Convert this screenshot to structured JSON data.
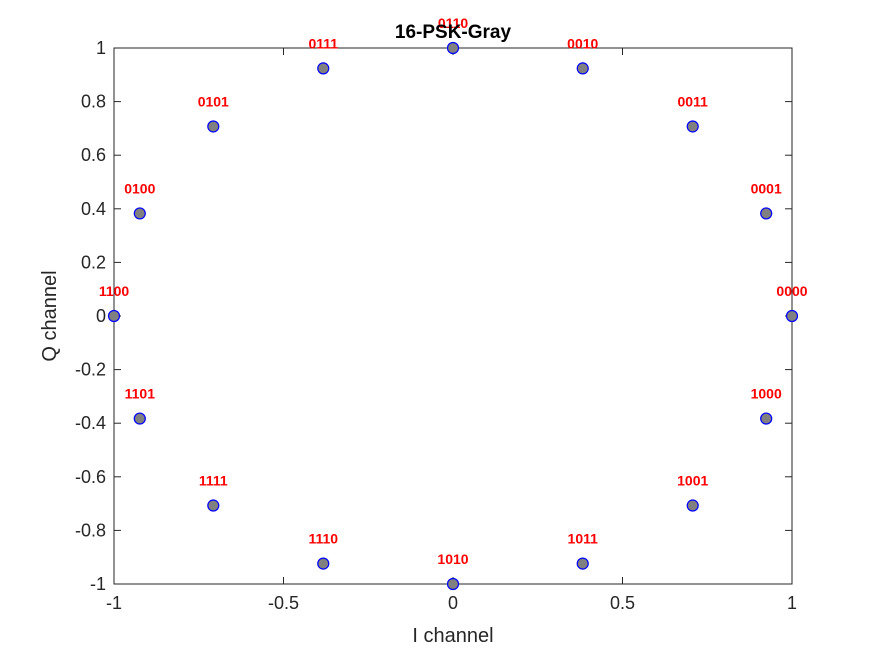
{
  "chart_data": {
    "type": "scatter",
    "title": "16-PSK-Gray",
    "xlabel": "I channel",
    "ylabel": "Q channel",
    "xlim": [
      -1,
      1
    ],
    "ylim": [
      -1,
      1
    ],
    "xticks": [
      -1,
      -0.5,
      0,
      0.5,
      1
    ],
    "xtick_labels": [
      "-1",
      "-0.5",
      "0",
      "0.5",
      "1"
    ],
    "yticks": [
      1,
      0.8,
      0.6,
      0.4,
      0.2,
      0,
      -0.2,
      -0.4,
      -0.6,
      -0.8,
      -1
    ],
    "ytick_labels": [
      "1",
      "0.8",
      "0.6",
      "0.4",
      "0.2",
      "0",
      "-0.2",
      "-0.4",
      "-0.6",
      "-0.8",
      "-1"
    ],
    "grid": false,
    "marker_face_color": "#808080",
    "marker_edge_color": "#0000ff",
    "label_color": "#ff0000",
    "points": [
      {
        "x": 1.0,
        "y": 0.0,
        "label": "0000"
      },
      {
        "x": 0.9239,
        "y": 0.3827,
        "label": "0001"
      },
      {
        "x": 0.7071,
        "y": 0.7071,
        "label": "0011"
      },
      {
        "x": 0.3827,
        "y": 0.9239,
        "label": "0010"
      },
      {
        "x": 0.0,
        "y": 1.0,
        "label": "0110"
      },
      {
        "x": -0.3827,
        "y": 0.9239,
        "label": "0111"
      },
      {
        "x": -0.7071,
        "y": 0.7071,
        "label": "0101"
      },
      {
        "x": -0.9239,
        "y": 0.3827,
        "label": "0100"
      },
      {
        "x": -1.0,
        "y": 0.0,
        "label": "1100"
      },
      {
        "x": -0.9239,
        "y": -0.3827,
        "label": "1101"
      },
      {
        "x": -0.7071,
        "y": -0.7071,
        "label": "1111"
      },
      {
        "x": -0.3827,
        "y": -0.9239,
        "label": "1110"
      },
      {
        "x": 0.0,
        "y": -1.0,
        "label": "1010"
      },
      {
        "x": 0.3827,
        "y": -0.9239,
        "label": "1011"
      },
      {
        "x": 0.7071,
        "y": -0.7071,
        "label": "1001"
      },
      {
        "x": 0.9239,
        "y": -0.3827,
        "label": "1000"
      }
    ]
  }
}
